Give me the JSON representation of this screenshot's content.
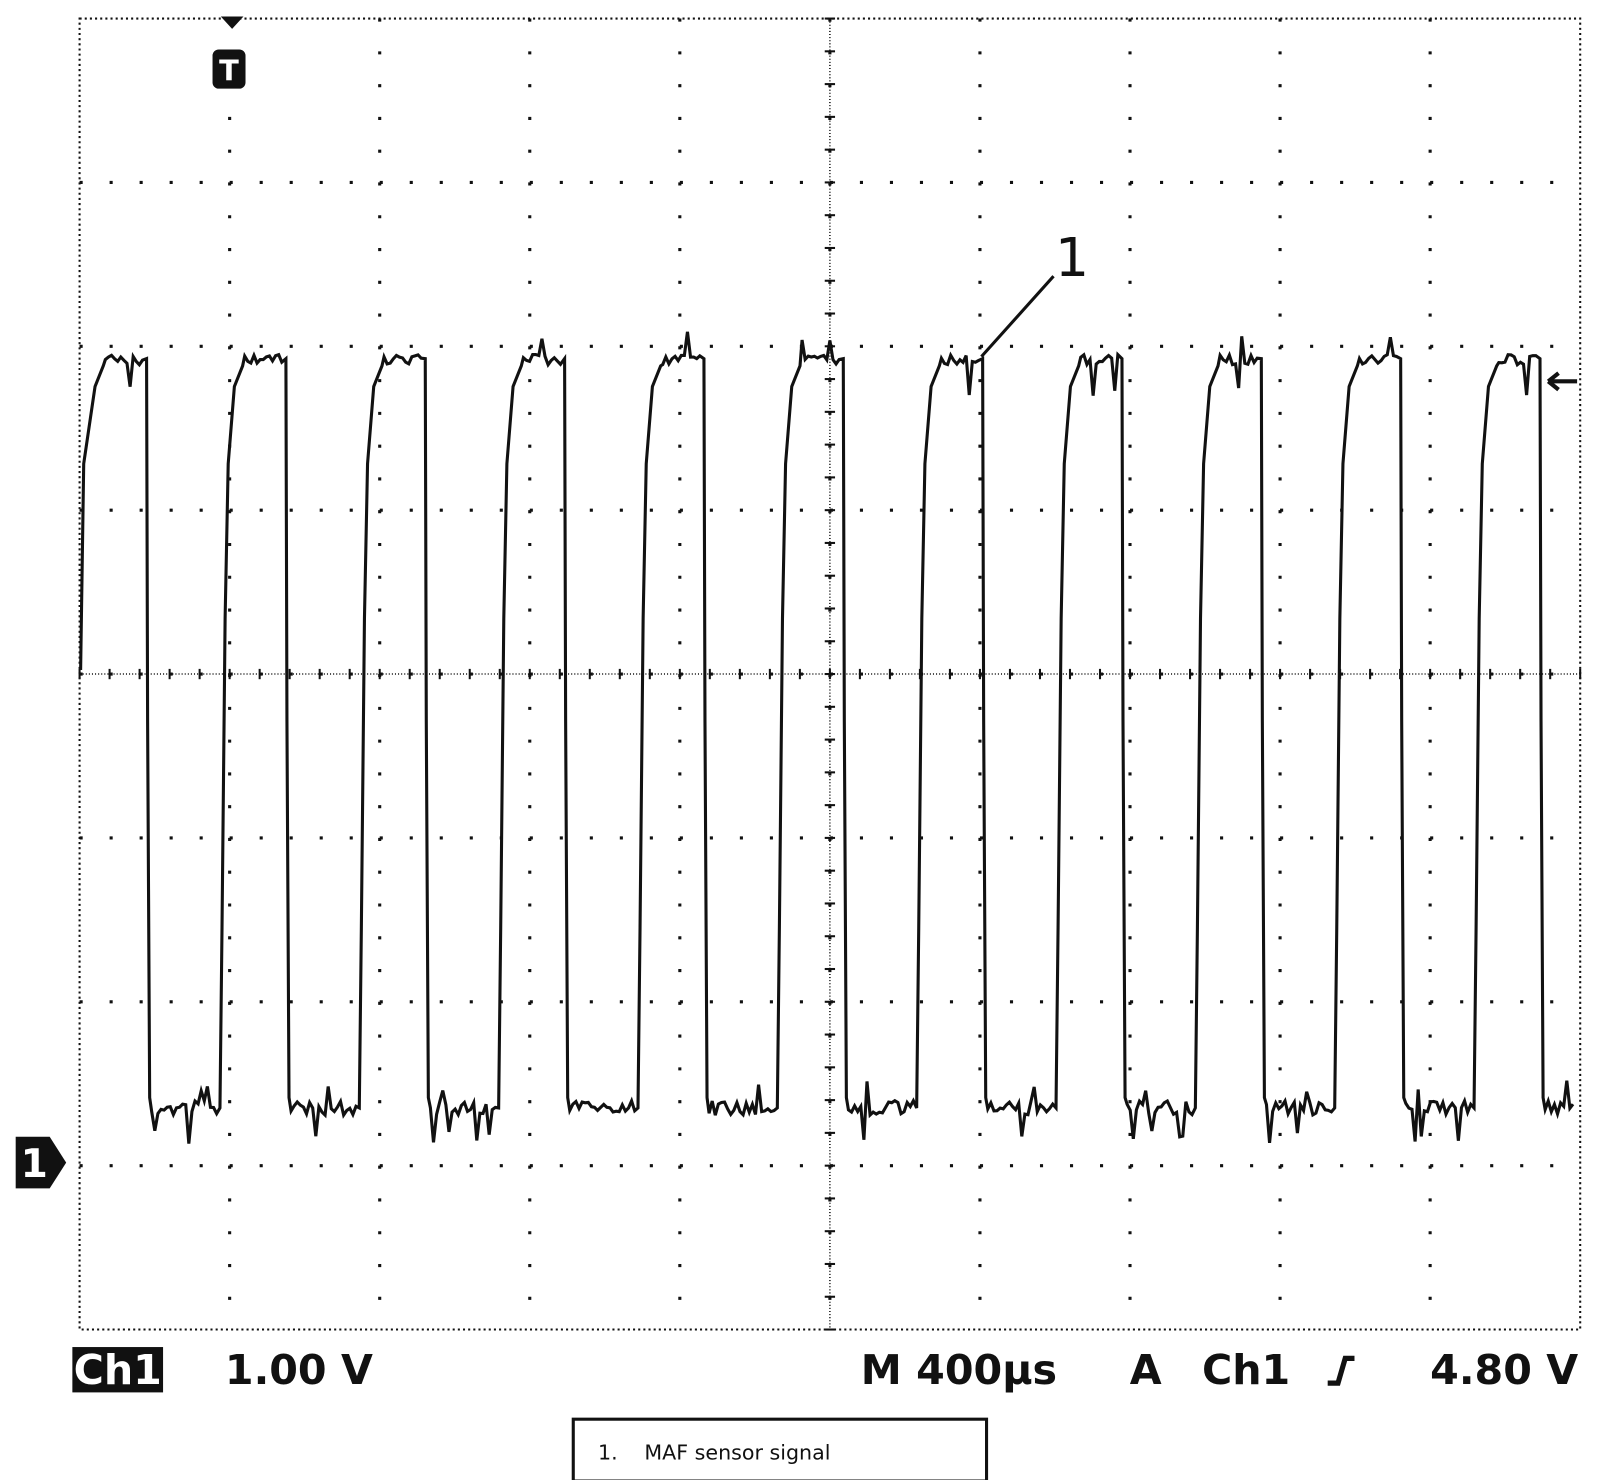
{
  "status_bar": {
    "channel": "Ch1",
    "volts_per_div": "1.00 V",
    "timebase": "M 400µs",
    "trigger_mode": "A",
    "trigger_source": "Ch1",
    "trigger_level": "4.80 V"
  },
  "markers": {
    "trigger": "T",
    "channel": "1"
  },
  "annotation": "1",
  "legend": {
    "number": "1.",
    "label": "MAF sensor signal"
  }
}
